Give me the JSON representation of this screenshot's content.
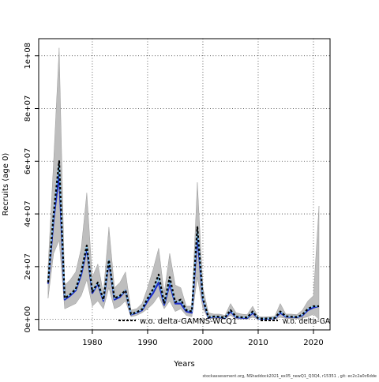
{
  "chart_data": {
    "type": "line",
    "xlabel": "Years",
    "ylabel": "Recruits (age 0)",
    "xlim": [
      1970.3,
      2023.0
    ],
    "ylim": [
      -4000000,
      106500000
    ],
    "x_ticks": [
      1980,
      1990,
      2000,
      2010,
      2020
    ],
    "x_tick_labels": [
      "1980",
      "1990",
      "2000",
      "2010",
      "2020"
    ],
    "y_ticks": [
      0,
      20000000,
      40000000,
      60000000,
      80000000,
      100000000
    ],
    "y_tick_labels": [
      "0e+00",
      "2e+07",
      "4e+07",
      "6e+07",
      "8e+07",
      "1e+08"
    ],
    "grid": true,
    "legend": {
      "placement": "bottom",
      "entries": [
        "w.o. delta-GAMNS-WCQ1",
        "w.o. delta-GA"
      ]
    },
    "years": [
      1972,
      1973,
      1974,
      1975,
      1976,
      1977,
      1978,
      1979,
      1980,
      1981,
      1982,
      1983,
      1984,
      1985,
      1986,
      1987,
      1988,
      1989,
      1990,
      1991,
      1992,
      1993,
      1994,
      1995,
      1996,
      1997,
      1998,
      1999,
      2000,
      2001,
      2002,
      2003,
      2004,
      2005,
      2006,
      2007,
      2008,
      2009,
      2010,
      2011,
      2012,
      2013,
      2014,
      2015,
      2016,
      2017,
      2018,
      2019,
      2020,
      2021
    ],
    "band": {
      "lower": [
        8000000,
        25000000,
        30000000,
        4000000,
        5000000,
        6000000,
        9000000,
        15000000,
        5000000,
        7000000,
        4000000,
        12000000,
        4000000,
        5000000,
        7000000,
        1000000,
        1500000,
        2500000,
        4000000,
        6000000,
        9000000,
        4000000,
        7000000,
        3000000,
        4000000,
        1500000,
        1000000,
        16000000,
        4000000,
        200000,
        300000,
        300000,
        150000,
        1500000,
        200000,
        100000,
        80000,
        800000,
        50000,
        50000,
        50000,
        60000,
        800000,
        300000,
        250000,
        200000,
        500000,
        1000000,
        2000000,
        0
      ],
      "upper": [
        20000000,
        60000000,
        103000000,
        13000000,
        15000000,
        18000000,
        27000000,
        48000000,
        16000000,
        21000000,
        10000000,
        35000000,
        12000000,
        14000000,
        18000000,
        3500000,
        4000000,
        6000000,
        12000000,
        19000000,
        27000000,
        10000000,
        25000000,
        13000000,
        12000000,
        5000000,
        5000000,
        52000000,
        12000000,
        2500000,
        2000000,
        2000000,
        1500000,
        6000000,
        2500000,
        2000000,
        1800000,
        5000000,
        1000000,
        900000,
        1000000,
        1200000,
        6000000,
        2000000,
        2000000,
        1800000,
        3500000,
        7000000,
        9000000,
        43000000
      ]
    },
    "series": [
      {
        "values": [
          13500000,
          38000000,
          55000000,
          7500000,
          9000000,
          11000000,
          17000000,
          27000000,
          10000000,
          13500000,
          7000000,
          22000000,
          7500000,
          8500000,
          11000000,
          1800000,
          2500000,
          3500000,
          7000000,
          10000000,
          14000000,
          5500000,
          13500000,
          6000000,
          6000000,
          3000000,
          2500000,
          32000000,
          7500000,
          600000,
          1000000,
          800000,
          500000,
          3000000,
          800000,
          600000,
          500000,
          2500000,
          300000,
          200000,
          300000,
          400000,
          2500000,
          1000000,
          900000,
          800000,
          1500000,
          3500000,
          4500000,
          5000000
        ]
      },
      {
        "values": [
          14000000,
          40000000,
          60000000,
          8000000,
          9500000,
          11500000,
          18000000,
          28000000,
          10500000,
          14000000,
          7500000,
          22500000,
          8000000,
          9000000,
          11000000,
          2000000,
          2700000,
          3800000,
          8000000,
          11000000,
          16000000,
          6000000,
          15000000,
          6500000,
          7000000,
          3500000,
          3000000,
          35000000,
          8000000,
          800000,
          1100000,
          1000000,
          700000,
          3500000,
          1000000,
          800000,
          700000,
          3000000,
          400000,
          300000,
          400000,
          500000,
          3000000,
          1200000,
          1000000,
          900000,
          1800000,
          4000000,
          5000000,
          5000000
        ]
      },
      {
        "values": [
          14000000,
          40000000,
          60000000,
          8000000,
          9500000,
          11500000,
          18000000,
          28000000,
          10500000,
          14000000,
          7500000,
          22500000,
          8000000,
          9000000,
          11000000,
          2000000,
          2700000,
          3800000,
          8000000,
          11500000,
          17000000,
          6000000,
          16000000,
          6500000,
          7500000,
          3500000,
          3000000,
          35000000,
          8000000,
          800000,
          1100000,
          1000000,
          700000,
          3500000,
          1000000,
          800000,
          700000,
          3000000,
          400000,
          300000,
          400000,
          500000,
          3000000,
          1200000,
          1000000,
          900000,
          1800000,
          4000000,
          5000000,
          5000000
        ]
      }
    ],
    "colors": {
      "band": "#bebebe",
      "band_stroke": "#9a9a9a",
      "series": [
        "#1f30c8",
        "#87cefa",
        "#000000"
      ],
      "grid": "#444444",
      "axis": "#000000"
    },
    "footer_note": "stockassessment.org, NShaddock2021_ex05_newQ1_Q3Q4, r15351 , git: ec2c2a0c6dde"
  }
}
